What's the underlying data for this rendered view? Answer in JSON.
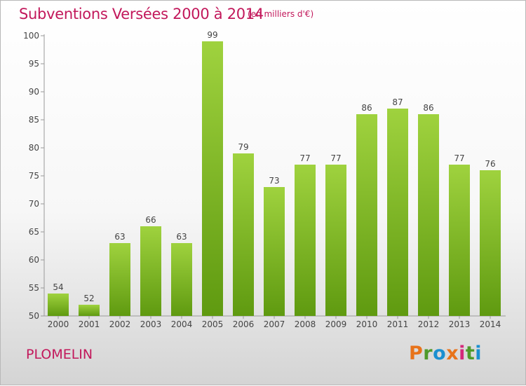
{
  "header": {
    "title": "Subventions Versées 2000 à 2014",
    "subtitle": "(en milliers d'€)"
  },
  "footer": {
    "location": "PLOMELIN",
    "logo_letters": [
      "P",
      "r",
      "o",
      "x",
      "i",
      "t",
      "i"
    ],
    "logo_colors": [
      "#e8731a",
      "#4f9a2a",
      "#1a8fd0",
      "#e8731a",
      "#d4297a",
      "#4f9a2a",
      "#1a8fd0"
    ]
  },
  "colors": {
    "bar_top": "#9fd23e",
    "bar_bottom": "#5f9a10",
    "accent": "#c2185b"
  },
  "chart_data": {
    "type": "bar",
    "categories": [
      "2000",
      "2001",
      "2002",
      "2003",
      "2004",
      "2005",
      "2006",
      "2007",
      "2008",
      "2009",
      "2010",
      "2011",
      "2012",
      "2013",
      "2014"
    ],
    "values": [
      54,
      52,
      63,
      66,
      63,
      99,
      79,
      73,
      77,
      77,
      86,
      87,
      86,
      77,
      76
    ],
    "yticks": [
      50,
      55,
      60,
      65,
      70,
      75,
      80,
      85,
      90,
      95,
      100
    ],
    "ylim": [
      50,
      100
    ],
    "grid": false,
    "data_labels": true
  }
}
